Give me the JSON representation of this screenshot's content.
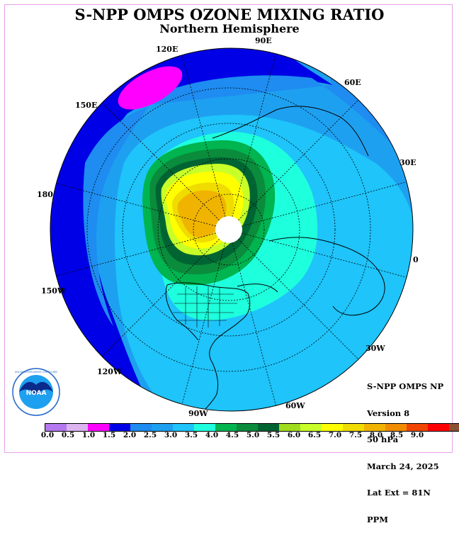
{
  "header": {
    "title": "S-NPP OMPS OZONE MIXING RATIO",
    "subtitle": "Northern Hemisphere"
  },
  "map": {
    "projection": "polar stereographic, north pole",
    "longitude_labels": [
      "90E",
      "60E",
      "30E",
      "0",
      "30W",
      "60W",
      "90W",
      "120W",
      "150W",
      "180",
      "150E",
      "120E"
    ],
    "colors": {
      "ocean_like_fill": "#1ec4fa",
      "outer_band": "#1e8cf0",
      "deep_blue": "#0000e6",
      "max_magenta": "#ff00ff",
      "cyan_core": "#1effdd",
      "green_ring": "#0a8c3c",
      "dark_green_ring": "#006432",
      "yellow_core": "#ffff00",
      "orange_core": "#f0b400",
      "no_data_center": "#ffffff"
    }
  },
  "info": {
    "lines": [
      "S-NPP OMPS NP",
      "Version 8",
      "50 hPa",
      "March 24, 2025",
      "Lat Ext = 81N",
      "PPM"
    ]
  },
  "logo": {
    "text": "NOAA",
    "ring_text": "NATIONAL OCEANIC AND ATMOSPHERIC ADMINISTRATION · U.S. DEPARTMENT OF COMMERCE"
  },
  "colorbar": {
    "colors": [
      "#b478f0",
      "#dcb4f0",
      "#ff00ff",
      "#0000e6",
      "#1e8cf0",
      "#1ea0f0",
      "#1ec4fa",
      "#1effdd",
      "#00b450",
      "#0a8c3c",
      "#006432",
      "#a0dc1e",
      "#c8ff28",
      "#ffff00",
      "#f0dc00",
      "#f0b400",
      "#f08c00",
      "#f04600",
      "#ff0000",
      "#8c5032"
    ],
    "ticks": [
      "0.0",
      "0.5",
      "1.0",
      "1.5",
      "2.0",
      "2.5",
      "3.0",
      "3.5",
      "4.0",
      "4.5",
      "5.0",
      "5.5",
      "6.0",
      "6.5",
      "7.0",
      "7.5",
      "8.0",
      "8.5",
      "9.0"
    ]
  }
}
